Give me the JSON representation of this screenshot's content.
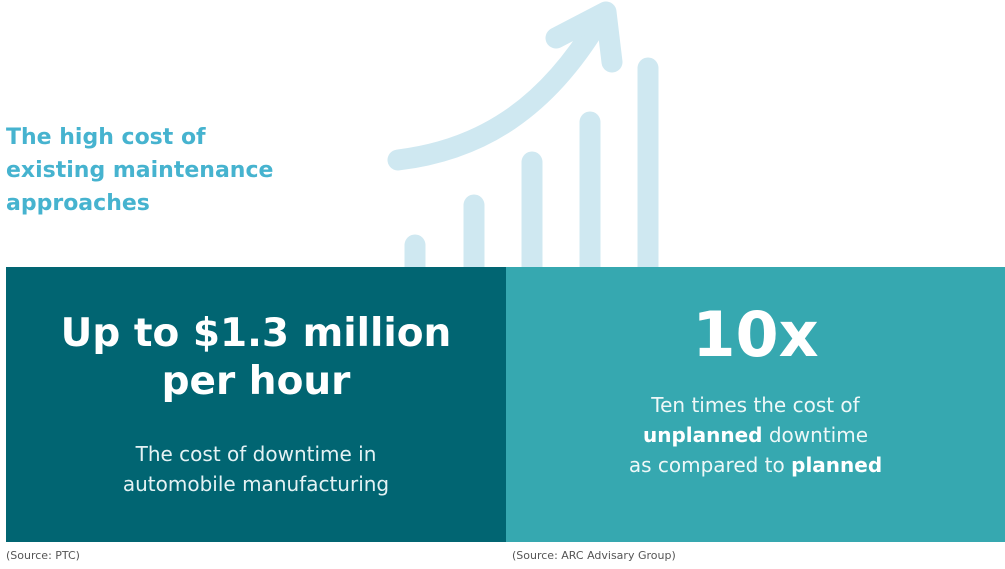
{
  "heading": {
    "line1": "The high cost of",
    "line2": "existing maintenance",
    "line3": "approaches"
  },
  "illustration": {
    "icon": "growth-chart-arrow-icon",
    "color": "#cfe8f1"
  },
  "left_panel": {
    "stat_line1": "Up to $1.3 million",
    "stat_line2": "per hour",
    "desc_line1": "The cost of downtime in",
    "desc_line2": "automobile manufacturing",
    "background": "#016572",
    "source": "(Source: PTC)"
  },
  "right_panel": {
    "stat": "10x",
    "desc_line1": "Ten times the cost of",
    "desc_line2_bold": "unplanned",
    "desc_line2_rest": " downtime",
    "desc_line3_pre": "as compared to ",
    "desc_line3_bold": "planned",
    "background": "#36a8b0",
    "source": "(Source: ARC Advisary Group)"
  }
}
